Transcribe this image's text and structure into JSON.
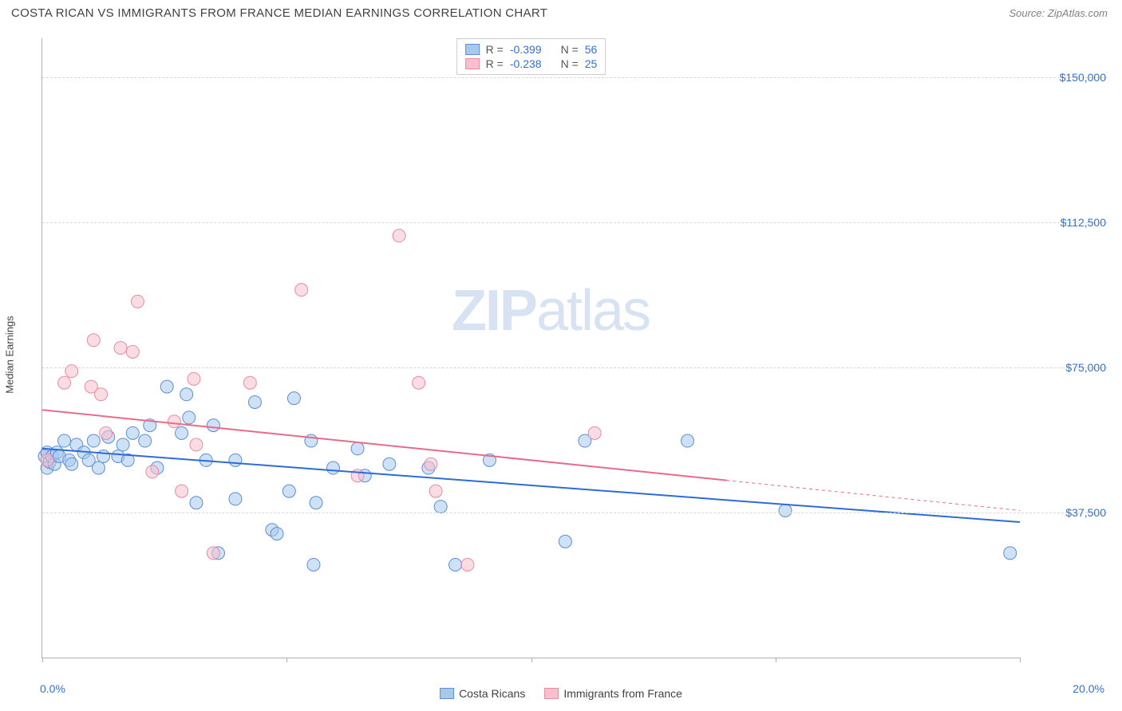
{
  "header": {
    "title": "COSTA RICAN VS IMMIGRANTS FROM FRANCE MEDIAN EARNINGS CORRELATION CHART",
    "source": "Source: ZipAtlas.com"
  },
  "chart": {
    "type": "scatter",
    "y_label": "Median Earnings",
    "watermark": "ZIPatlas",
    "xlim": [
      0,
      20
    ],
    "ylim": [
      0,
      160000
    ],
    "x_ticks": [
      0,
      5,
      10,
      15,
      20
    ],
    "x_tick_labels_visible": {
      "0": "0.0%",
      "20": "20.0%"
    },
    "y_gridlines": [
      37500,
      75000,
      112500,
      150000
    ],
    "y_tick_labels": [
      "$37,500",
      "$75,000",
      "$112,500",
      "$150,000"
    ],
    "background_color": "#ffffff",
    "grid_color": "#d8d8d8",
    "axis_color": "#b0b0b0",
    "tick_label_color": "#3470cc",
    "label_fontsize": 13,
    "tick_fontsize": 14,
    "marker_radius": 8,
    "marker_opacity": 0.55,
    "series": [
      {
        "name": "Costa Ricans",
        "fill": "#a8c8ec",
        "stroke": "#5b8fd6",
        "regression": {
          "x0": 0,
          "y0": 54000,
          "x1": 20,
          "y1": 35000,
          "solid_until_x": 20,
          "color": "#2e6bd6",
          "width": 2
        },
        "stats": {
          "R": "-0.399",
          "N": "56"
        },
        "points": [
          [
            0.05,
            52000
          ],
          [
            0.1,
            53000
          ],
          [
            0.1,
            49000
          ],
          [
            0.15,
            50500
          ],
          [
            0.2,
            52000
          ],
          [
            0.25,
            50000
          ],
          [
            0.3,
            53000
          ],
          [
            0.35,
            52000
          ],
          [
            0.45,
            56000
          ],
          [
            0.55,
            51000
          ],
          [
            0.6,
            50000
          ],
          [
            0.7,
            55000
          ],
          [
            0.85,
            53000
          ],
          [
            0.95,
            51000
          ],
          [
            1.05,
            56000
          ],
          [
            1.15,
            49000
          ],
          [
            1.25,
            52000
          ],
          [
            1.35,
            57000
          ],
          [
            1.55,
            52000
          ],
          [
            1.65,
            55000
          ],
          [
            1.75,
            51000
          ],
          [
            1.85,
            58000
          ],
          [
            2.1,
            56000
          ],
          [
            2.2,
            60000
          ],
          [
            2.35,
            49000
          ],
          [
            2.55,
            70000
          ],
          [
            2.85,
            58000
          ],
          [
            2.95,
            68000
          ],
          [
            3.0,
            62000
          ],
          [
            3.15,
            40000
          ],
          [
            3.35,
            51000
          ],
          [
            3.5,
            60000
          ],
          [
            3.6,
            27000
          ],
          [
            3.95,
            51000
          ],
          [
            3.95,
            41000
          ],
          [
            4.35,
            66000
          ],
          [
            4.7,
            33000
          ],
          [
            4.8,
            32000
          ],
          [
            5.05,
            43000
          ],
          [
            5.15,
            67000
          ],
          [
            5.5,
            56000
          ],
          [
            5.55,
            24000
          ],
          [
            5.6,
            40000
          ],
          [
            5.95,
            49000
          ],
          [
            6.45,
            54000
          ],
          [
            6.6,
            47000
          ],
          [
            7.1,
            50000
          ],
          [
            7.9,
            49000
          ],
          [
            8.15,
            39000
          ],
          [
            8.45,
            24000
          ],
          [
            9.15,
            51000
          ],
          [
            10.7,
            30000
          ],
          [
            11.1,
            56000
          ],
          [
            13.2,
            56000
          ],
          [
            15.2,
            38000
          ],
          [
            19.8,
            27000
          ]
        ]
      },
      {
        "name": "Immigrants from France",
        "fill": "#f6c0cc",
        "stroke": "#e88ba3",
        "regression": {
          "x0": 0,
          "y0": 64000,
          "x1": 20,
          "y1": 38000,
          "solid_until_x": 14,
          "color": "#e86b8a",
          "width": 2
        },
        "stats": {
          "R": "-0.238",
          "N": "25"
        },
        "points": [
          [
            0.1,
            51000
          ],
          [
            0.45,
            71000
          ],
          [
            0.6,
            74000
          ],
          [
            1.0,
            70000
          ],
          [
            1.05,
            82000
          ],
          [
            1.2,
            68000
          ],
          [
            1.3,
            58000
          ],
          [
            1.6,
            80000
          ],
          [
            1.85,
            79000
          ],
          [
            1.95,
            92000
          ],
          [
            2.25,
            48000
          ],
          [
            2.7,
            61000
          ],
          [
            2.85,
            43000
          ],
          [
            3.1,
            72000
          ],
          [
            3.15,
            55000
          ],
          [
            3.5,
            27000
          ],
          [
            4.25,
            71000
          ],
          [
            5.3,
            95000
          ],
          [
            6.45,
            47000
          ],
          [
            7.3,
            109000
          ],
          [
            7.7,
            71000
          ],
          [
            7.95,
            50000
          ],
          [
            8.05,
            43000
          ],
          [
            8.7,
            24000
          ],
          [
            11.3,
            58000
          ]
        ]
      }
    ],
    "legend": {
      "position_bottom": true,
      "items": [
        {
          "label": "Costa Ricans",
          "fill": "#a8c8ec",
          "stroke": "#5b8fd6"
        },
        {
          "label": "Immigrants from France",
          "fill": "#f6c0cc",
          "stroke": "#e88ba3"
        }
      ]
    }
  }
}
